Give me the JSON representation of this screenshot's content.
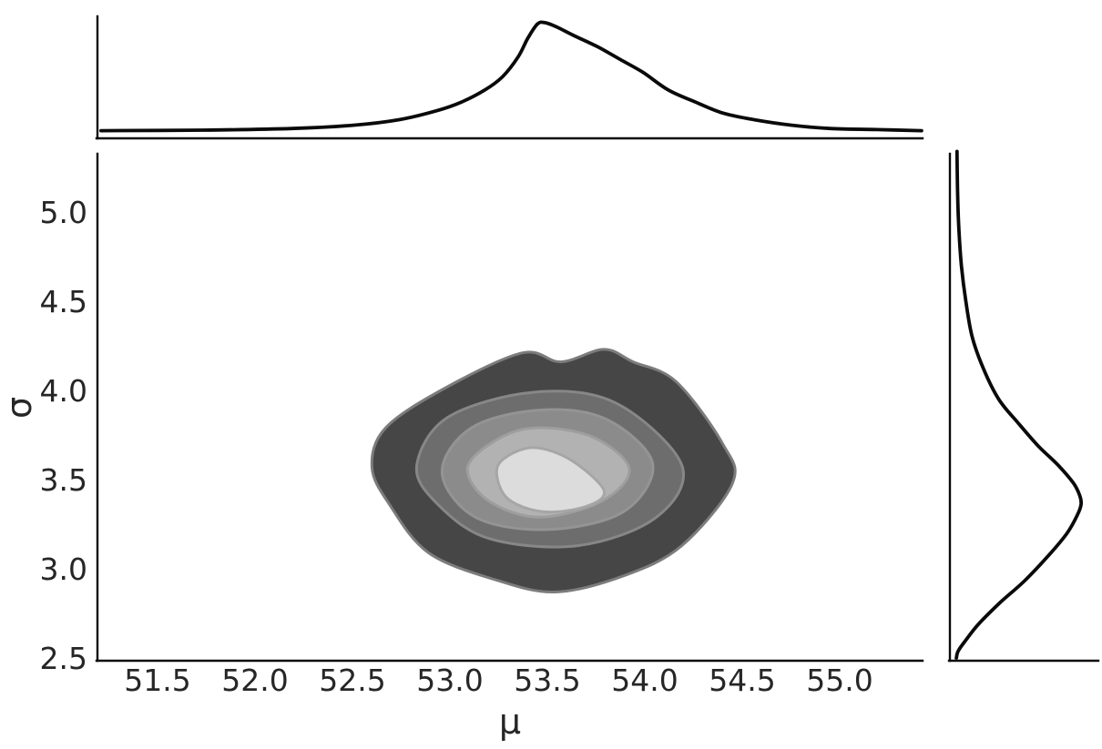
{
  "figure": {
    "background": "#ffffff",
    "curve_color": "#0a0a0a",
    "spine_color": "#0a0a0a",
    "text_color": "#262626"
  },
  "axes": {
    "x": {
      "label": "μ",
      "ticks": [
        "51.5",
        "52.0",
        "52.5",
        "53.0",
        "53.5",
        "54.0",
        "54.5",
        "55.0"
      ]
    },
    "y": {
      "label": "σ",
      "ticks": [
        "5.0",
        "4.5",
        "4.0",
        "3.5",
        "3.0",
        "2.5"
      ]
    }
  },
  "chart_data": {
    "type": "heatmap",
    "subtype": "joint-kde-contour-with-marginals",
    "title": "",
    "xlabel": "μ",
    "ylabel": "σ",
    "xlim": [
      51.19,
      55.42
    ],
    "ylim": [
      2.48,
      5.34
    ],
    "grid": false,
    "legend": "none",
    "density_center": {
      "mu": 53.5,
      "sigma": 3.45
    },
    "contour": {
      "colormap": "grayscale, dark outer to light inner",
      "levels": [
        {
          "fill": "#464646",
          "stroke": "#7c7c7c",
          "polygon": [
            [
              53.37,
              4.21
            ],
            [
              53.57,
              4.16
            ],
            [
              53.79,
              4.23
            ],
            [
              53.94,
              4.16
            ],
            [
              54.16,
              4.05
            ],
            [
              54.4,
              3.7
            ],
            [
              54.45,
              3.48
            ],
            [
              54.19,
              3.13
            ],
            [
              53.89,
              2.96
            ],
            [
              53.54,
              2.87
            ],
            [
              53.23,
              2.94
            ],
            [
              52.89,
              3.09
            ],
            [
              52.69,
              3.36
            ],
            [
              52.6,
              3.57
            ],
            [
              52.67,
              3.79
            ],
            [
              52.97,
              4.01
            ]
          ]
        },
        {
          "fill": "#6d6d6d",
          "stroke": "#878787",
          "polygon": [
            [
              53.43,
              3.99
            ],
            [
              53.85,
              3.93
            ],
            [
              54.19,
              3.58
            ],
            [
              54.06,
              3.29
            ],
            [
              53.66,
              3.13
            ],
            [
              53.2,
              3.17
            ],
            [
              52.93,
              3.37
            ],
            [
              52.83,
              3.58
            ],
            [
              52.99,
              3.85
            ]
          ]
        },
        {
          "fill": "#8b8b8b",
          "stroke": "#949494",
          "polygon": [
            [
              53.46,
              3.89
            ],
            [
              53.8,
              3.84
            ],
            [
              54.04,
              3.59
            ],
            [
              53.89,
              3.32
            ],
            [
              53.5,
              3.22
            ],
            [
              53.13,
              3.29
            ],
            [
              52.96,
              3.54
            ],
            [
              53.11,
              3.79
            ]
          ]
        },
        {
          "fill": "#b2b2b2",
          "stroke": "#9e9e9e",
          "polygon": [
            [
              53.43,
              3.79
            ],
            [
              53.73,
              3.74
            ],
            [
              53.92,
              3.56
            ],
            [
              53.78,
              3.38
            ],
            [
              53.46,
              3.29
            ],
            [
              53.2,
              3.38
            ],
            [
              53.09,
              3.56
            ],
            [
              53.22,
              3.71
            ]
          ]
        },
        {
          "fill": "#dcdcdc",
          "stroke": "#a6a6a6",
          "polygon": [
            [
              53.43,
              3.68
            ],
            [
              53.62,
              3.61
            ],
            [
              53.79,
              3.44
            ],
            [
              53.7,
              3.35
            ],
            [
              53.48,
              3.32
            ],
            [
              53.3,
              3.39
            ],
            [
              53.24,
              3.53
            ],
            [
              53.28,
              3.62
            ]
          ]
        }
      ]
    },
    "marginal_top": {
      "variable": "μ",
      "normalized_density": true,
      "points": [
        [
          51.21,
          0.02
        ],
        [
          51.73,
          0.025
        ],
        [
          52.19,
          0.04
        ],
        [
          52.51,
          0.07
        ],
        [
          52.74,
          0.12
        ],
        [
          52.93,
          0.2
        ],
        [
          53.06,
          0.28
        ],
        [
          53.18,
          0.39
        ],
        [
          53.27,
          0.51
        ],
        [
          53.35,
          0.69
        ],
        [
          53.4,
          0.86
        ],
        [
          53.45,
          0.99
        ],
        [
          53.49,
          1.0
        ],
        [
          53.55,
          0.96
        ],
        [
          53.64,
          0.88
        ],
        [
          53.76,
          0.78
        ],
        [
          53.87,
          0.67
        ],
        [
          53.99,
          0.55
        ],
        [
          54.12,
          0.39
        ],
        [
          54.26,
          0.28
        ],
        [
          54.4,
          0.18
        ],
        [
          54.56,
          0.12
        ],
        [
          54.75,
          0.07
        ],
        [
          54.95,
          0.04
        ],
        [
          55.19,
          0.03
        ],
        [
          55.42,
          0.02
        ]
      ]
    },
    "marginal_right": {
      "variable": "σ",
      "normalized_density": true,
      "points": [
        [
          5.34,
          0.02
        ],
        [
          5.1,
          0.025
        ],
        [
          4.9,
          0.035
        ],
        [
          4.7,
          0.055
        ],
        [
          4.5,
          0.09
        ],
        [
          4.3,
          0.14
        ],
        [
          4.12,
          0.23
        ],
        [
          3.95,
          0.35
        ],
        [
          3.82,
          0.5
        ],
        [
          3.69,
          0.66
        ],
        [
          3.58,
          0.82
        ],
        [
          3.48,
          0.94
        ],
        [
          3.41,
          0.99
        ],
        [
          3.36,
          1.0
        ],
        [
          3.3,
          0.97
        ],
        [
          3.2,
          0.89
        ],
        [
          3.08,
          0.75
        ],
        [
          2.93,
          0.55
        ],
        [
          2.81,
          0.36
        ],
        [
          2.69,
          0.19
        ],
        [
          2.6,
          0.09
        ],
        [
          2.54,
          0.03
        ],
        [
          2.5,
          0.015
        ]
      ]
    }
  }
}
